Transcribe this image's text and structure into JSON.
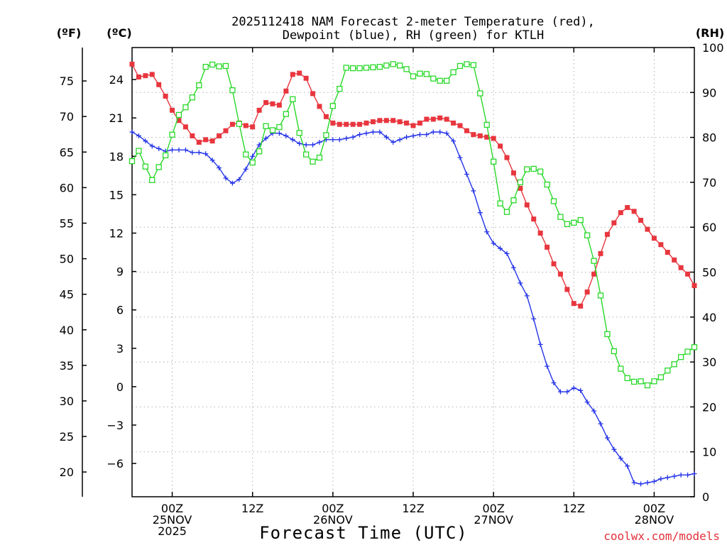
{
  "chart_data": {
    "type": "line",
    "title_line1": "2025112418 NAM Forecast 2-meter Temperature (red),",
    "title_line2": "Dewpoint (blue), RH (green) for KTLH",
    "xlabel": "Forecast Time (UTC)",
    "credit": "coolwx.com/models",
    "units": {
      "fahrenheit": "(ºF)",
      "celsius": "(ºC)",
      "rh": "(RH)"
    },
    "x_range_hours": [
      0,
      84
    ],
    "x_ticks": [
      {
        "hour": 6,
        "lines": [
          "00Z",
          "25NOV",
          "2025"
        ]
      },
      {
        "hour": 18,
        "lines": [
          "12Z"
        ]
      },
      {
        "hour": 30,
        "lines": [
          "00Z",
          "26NOV"
        ]
      },
      {
        "hour": 42,
        "lines": [
          "12Z"
        ]
      },
      {
        "hour": 54,
        "lines": [
          "00Z",
          "27NOV"
        ]
      },
      {
        "hour": 66,
        "lines": [
          "12Z"
        ]
      },
      {
        "hour": 78,
        "lines": [
          "00Z",
          "28NOV"
        ]
      }
    ],
    "celsius_range": [
      -8.6,
      26.5
    ],
    "celsius_ticks": [
      "24",
      "21",
      "18",
      "15",
      "12",
      "9",
      "6",
      "3",
      "0",
      "−3",
      "−6"
    ],
    "fahrenheit_ticks": [
      "75",
      "70",
      "65",
      "60",
      "55",
      "50",
      "45",
      "40",
      "35",
      "30",
      "25",
      "20"
    ],
    "rh_range": [
      0,
      100
    ],
    "rh_ticks": [
      "0",
      "10",
      "20",
      "30",
      "40",
      "50",
      "60",
      "70",
      "80",
      "90",
      "100"
    ],
    "series": [
      {
        "name": "2-meter Temperature",
        "units": "celsius",
        "color": "#e8363e",
        "marker": "filled-square",
        "values": [
          25.2,
          24.2,
          24.3,
          24.4,
          23.6,
          22.7,
          21.6,
          20.8,
          20.3,
          19.6,
          19.1,
          19.3,
          19.2,
          19.6,
          20.0,
          20.5,
          20.6,
          20.4,
          20.3,
          21.6,
          22.2,
          22.1,
          22.0,
          23.1,
          24.4,
          24.5,
          24.1,
          22.9,
          21.9,
          21.1,
          20.6,
          20.5,
          20.5,
          20.5,
          20.5,
          20.6,
          20.7,
          20.8,
          20.8,
          20.8,
          20.7,
          20.6,
          20.4,
          20.6,
          20.9,
          20.9,
          21.0,
          20.9,
          20.6,
          20.4,
          20.0,
          19.7,
          19.6,
          19.5,
          19.4,
          18.8,
          17.9,
          16.7,
          15.5,
          14.2,
          13.1,
          12.0,
          10.9,
          9.6,
          8.8,
          7.6,
          6.5,
          6.3,
          7.4,
          8.8,
          10.4,
          11.9,
          12.8,
          13.6,
          14.0,
          13.7,
          13.0,
          12.3,
          11.6,
          11.1,
          10.5,
          9.9,
          9.3,
          8.8,
          7.9
        ]
      },
      {
        "name": "Dewpoint",
        "units": "celsius",
        "color": "#2434e8",
        "marker": "plus",
        "values": [
          19.9,
          19.6,
          19.2,
          18.8,
          18.6,
          18.4,
          18.5,
          18.5,
          18.5,
          18.3,
          18.3,
          18.2,
          17.7,
          17.1,
          16.3,
          15.9,
          16.2,
          17.0,
          18.0,
          18.9,
          19.4,
          19.8,
          19.8,
          19.6,
          19.3,
          19.0,
          18.9,
          18.9,
          19.1,
          19.3,
          19.3,
          19.3,
          19.4,
          19.5,
          19.7,
          19.8,
          19.9,
          19.9,
          19.5,
          19.1,
          19.3,
          19.5,
          19.6,
          19.7,
          19.7,
          19.9,
          19.9,
          19.8,
          19.2,
          17.9,
          16.6,
          15.3,
          13.6,
          12.1,
          11.2,
          10.8,
          10.4,
          9.3,
          8.1,
          7.1,
          5.3,
          3.3,
          1.6,
          0.3,
          -0.4,
          -0.4,
          -0.1,
          -0.3,
          -1.2,
          -1.9,
          -2.9,
          -4.0,
          -4.9,
          -5.6,
          -6.2,
          -7.5,
          -7.6,
          -7.5,
          -7.4,
          -7.2,
          -7.1,
          -7.0,
          -6.9,
          -6.9,
          -6.8
        ]
      },
      {
        "name": "RH",
        "units": "percent",
        "color": "#28d828",
        "marker": "open-square",
        "values": [
          74.7,
          77.0,
          73.5,
          70.5,
          73.4,
          76.0,
          80.6,
          85.0,
          86.7,
          88.9,
          91.6,
          95.7,
          96.2,
          95.8,
          95.9,
          90.5,
          83.0,
          76.2,
          74.4,
          76.9,
          82.5,
          81.6,
          82.3,
          85.2,
          88.5,
          81.0,
          76.2,
          74.6,
          75.5,
          80.5,
          87.0,
          90.8,
          95.5,
          95.4,
          95.4,
          95.5,
          95.6,
          95.7,
          96.0,
          96.3,
          96.0,
          95.2,
          93.6,
          94.2,
          94.1,
          93.1,
          92.6,
          92.6,
          94.5,
          95.9,
          96.3,
          96.1,
          89.8,
          82.8,
          74.6,
          65.3,
          63.4,
          66.0,
          70.0,
          72.9,
          73.0,
          72.4,
          69.5,
          65.8,
          62.3,
          60.7,
          61.0,
          61.6,
          58.2,
          52.5,
          44.8,
          36.2,
          32.4,
          28.5,
          26.4,
          25.6,
          25.7,
          24.8,
          25.7,
          26.6,
          28.1,
          29.5,
          31.1,
          32.3,
          33.3
        ]
      }
    ]
  }
}
